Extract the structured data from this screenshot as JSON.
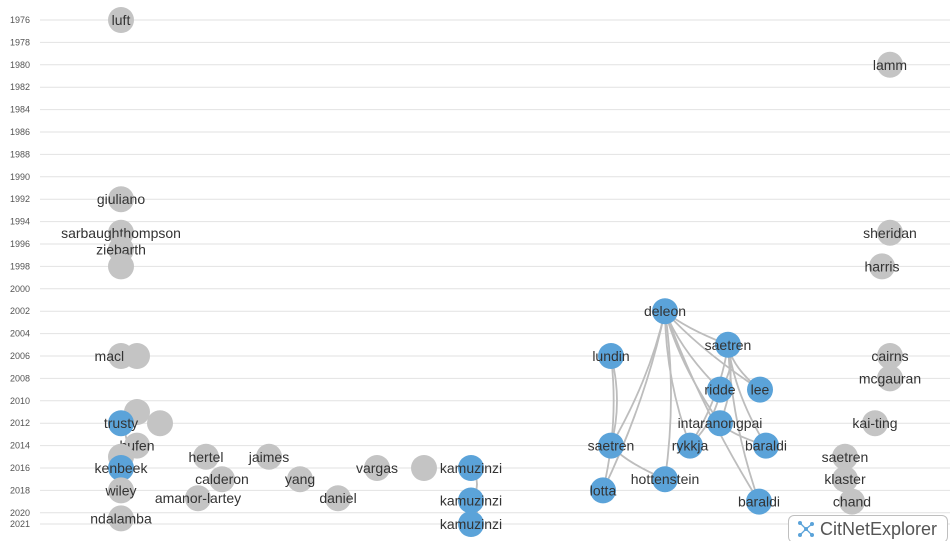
{
  "app": {
    "title": "CitNetExplorer"
  },
  "colors": {
    "selected": "#5ba3d9",
    "unselected": "#c4c4c4",
    "edge": "#bdbdbd",
    "grid": "#e2e2e2"
  },
  "timeline": {
    "years": [
      "1976",
      "1978",
      "1980",
      "1982",
      "1984",
      "1986",
      "1988",
      "1990",
      "1992",
      "1994",
      "1996",
      "1998",
      "2000",
      "2002",
      "2004",
      "2006",
      "2008",
      "2010",
      "2012",
      "2014",
      "2016",
      "2018",
      "2020",
      "2021"
    ]
  },
  "nodes": [
    {
      "id": "n1",
      "label": "luft",
      "col": "left",
      "year": 1976,
      "selected": false
    },
    {
      "id": "n2",
      "label": "giuliano",
      "col": "left",
      "year": 1992,
      "selected": false
    },
    {
      "id": "n3",
      "label": "sarbaughthompson",
      "col": "left",
      "year": 1995,
      "selected": false
    },
    {
      "id": "n4",
      "label": "ziebarth",
      "col": "left",
      "year": 1996.5,
      "selected": false
    },
    {
      "id": "n5",
      "label": "",
      "col": "left",
      "year": 1998,
      "selected": false
    },
    {
      "id": "n6",
      "label": "macleod",
      "col": "left",
      "year": 2006,
      "selected": false
    },
    {
      "id": "n7",
      "label": "",
      "col": "left2",
      "year": 2006,
      "selected": false
    },
    {
      "id": "n8",
      "label": "",
      "col": "left2",
      "year": 2011,
      "selected": false
    },
    {
      "id": "n9",
      "label": "trusty",
      "col": "left",
      "year": 2012,
      "selected": true
    },
    {
      "id": "n10",
      "label": "",
      "col": "left3",
      "year": 2012,
      "selected": false
    },
    {
      "id": "n11",
      "label": "hufen",
      "col": "left2",
      "year": 2014,
      "selected": false
    },
    {
      "id": "n12",
      "label": "",
      "col": "left",
      "year": 2015,
      "selected": false
    },
    {
      "id": "n13",
      "label": "kenbeek",
      "col": "left",
      "year": 2016,
      "selected": true
    },
    {
      "id": "n14",
      "label": "hertel",
      "col": "left4",
      "year": 2015,
      "selected": false
    },
    {
      "id": "n15",
      "label": "jaimes",
      "col": "left5",
      "year": 2015,
      "selected": false
    },
    {
      "id": "n16",
      "label": "wiley",
      "col": "left",
      "year": 2018,
      "selected": false
    },
    {
      "id": "n17",
      "label": "calderon",
      "col": "left6",
      "year": 2017,
      "selected": false
    },
    {
      "id": "n18",
      "label": "yang",
      "col": "left7",
      "year": 2017,
      "selected": false
    },
    {
      "id": "n19",
      "label": "vargas",
      "col": "mid1",
      "year": 2016,
      "selected": false
    },
    {
      "id": "n20",
      "label": "",
      "col": "mid2",
      "year": 2016,
      "selected": false
    },
    {
      "id": "n21",
      "label": "amanor-lartey",
      "col": "left8",
      "year": 2018.7,
      "selected": false
    },
    {
      "id": "n22",
      "label": "daniel",
      "col": "left9",
      "year": 2018.7,
      "selected": false
    },
    {
      "id": "n23",
      "label": "ndalamba",
      "col": "left",
      "year": 2020.5,
      "selected": false
    },
    {
      "id": "n24",
      "label": "kamuzinzi",
      "col": "kam",
      "year": 2016,
      "selected": true
    },
    {
      "id": "n25",
      "label": "kamuzinzi",
      "col": "kam",
      "year": 2018.9,
      "selected": true
    },
    {
      "id": "n26",
      "label": "kamuzinzi",
      "col": "kam",
      "year": 2021,
      "selected": true
    },
    {
      "id": "n27",
      "label": "deleon",
      "col": "c1",
      "year": 2002,
      "selected": true
    },
    {
      "id": "n28",
      "label": "saetren",
      "col": "c2",
      "year": 2005,
      "selected": true
    },
    {
      "id": "n29",
      "label": "lundin",
      "col": "c3",
      "year": 2006,
      "selected": true
    },
    {
      "id": "n30",
      "label": "ridde",
      "col": "c4",
      "year": 2009,
      "selected": true
    },
    {
      "id": "n31",
      "label": "lee",
      "col": "c5",
      "year": 2009,
      "selected": true
    },
    {
      "id": "n32",
      "label": "intaranongpai",
      "col": "c6",
      "year": 2012,
      "selected": true
    },
    {
      "id": "n33",
      "label": "saetren",
      "col": "c3",
      "year": 2014,
      "selected": true
    },
    {
      "id": "n34",
      "label": "rykkja",
      "col": "c7",
      "year": 2014,
      "selected": true
    },
    {
      "id": "n35",
      "label": "baraldi",
      "col": "c8",
      "year": 2014,
      "selected": true
    },
    {
      "id": "n36",
      "label": "hottenstein",
      "col": "c9",
      "year": 2017,
      "selected": true
    },
    {
      "id": "n37",
      "label": "lotta",
      "col": "c10",
      "year": 2018,
      "selected": true
    },
    {
      "id": "n38",
      "label": "baraldi",
      "col": "c11",
      "year": 2019,
      "selected": true
    },
    {
      "id": "n39",
      "label": "lamm",
      "col": "r1",
      "year": 1980,
      "selected": false
    },
    {
      "id": "n40",
      "label": "sheridan",
      "col": "r1",
      "year": 1995,
      "selected": false
    },
    {
      "id": "n41",
      "label": "harris",
      "col": "r2",
      "year": 1998,
      "selected": false
    },
    {
      "id": "n42",
      "label": "cairns",
      "col": "r3",
      "year": 2006,
      "selected": false
    },
    {
      "id": "n43",
      "label": "mcgauran",
      "col": "r4",
      "year": 2008,
      "selected": false
    },
    {
      "id": "n44",
      "label": "kai-ting",
      "col": "r5",
      "year": 2012,
      "selected": false
    },
    {
      "id": "n45",
      "label": "saetren",
      "col": "r6",
      "year": 2015,
      "selected": false
    },
    {
      "id": "n46",
      "label": "klaster",
      "col": "r6",
      "year": 2017,
      "selected": false
    },
    {
      "id": "n47",
      "label": "chand",
      "col": "r7",
      "year": 2019,
      "selected": false
    }
  ]
}
